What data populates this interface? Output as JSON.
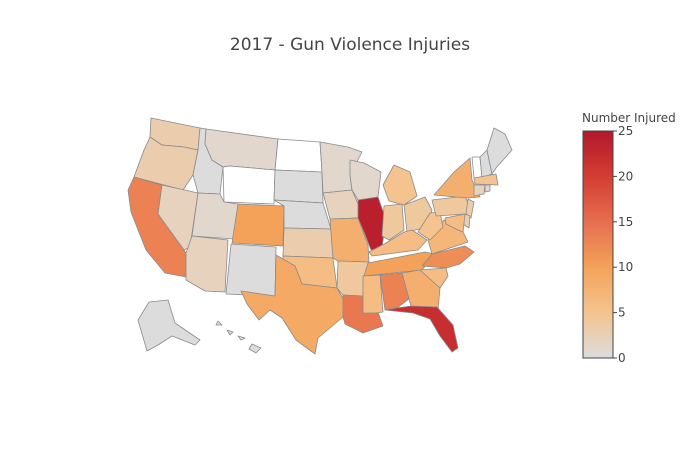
{
  "chart_data": {
    "type": "choropleth",
    "title": "2017 - Gun Violence Injuries",
    "colorbar": {
      "title": "Number Injured",
      "range": [
        0,
        25
      ],
      "ticks": [
        0,
        5,
        10,
        15,
        20,
        25
      ],
      "colorscale": [
        [
          0,
          "#dcdcdc"
        ],
        [
          0.2,
          "#f5c38f"
        ],
        [
          0.4,
          "#f4a25a"
        ],
        [
          0.6,
          "#e66d4f"
        ],
        [
          0.8,
          "#d43d33"
        ],
        [
          1,
          "#b2182b"
        ]
      ]
    },
    "missing_color": "#ffffff",
    "states": [
      {
        "state": "WA",
        "value": 3
      },
      {
        "state": "OR",
        "value": 3
      },
      {
        "state": "CA",
        "value": 13
      },
      {
        "state": "NV",
        "value": 2
      },
      {
        "state": "ID",
        "value": 0
      },
      {
        "state": "MT",
        "value": 1
      },
      {
        "state": "WY",
        "value": null
      },
      {
        "state": "UT",
        "value": 1
      },
      {
        "state": "AZ",
        "value": 2
      },
      {
        "state": "CO",
        "value": 10
      },
      {
        "state": "NM",
        "value": 0
      },
      {
        "state": "ND",
        "value": null
      },
      {
        "state": "SD",
        "value": 0
      },
      {
        "state": "NE",
        "value": 0
      },
      {
        "state": "KS",
        "value": 3
      },
      {
        "state": "OK",
        "value": 6
      },
      {
        "state": "TX",
        "value": 9
      },
      {
        "state": "MN",
        "value": 1
      },
      {
        "state": "IA",
        "value": 2
      },
      {
        "state": "MO",
        "value": 8
      },
      {
        "state": "AR",
        "value": 4
      },
      {
        "state": "LA",
        "value": 14
      },
      {
        "state": "WI",
        "value": 1
      },
      {
        "state": "IL",
        "value": 24
      },
      {
        "state": "MI",
        "value": 5
      },
      {
        "state": "IN",
        "value": 4
      },
      {
        "state": "OH",
        "value": 4
      },
      {
        "state": "KY",
        "value": 6
      },
      {
        "state": "TN",
        "value": 10
      },
      {
        "state": "MS",
        "value": 6
      },
      {
        "state": "AL",
        "value": 13
      },
      {
        "state": "GA",
        "value": 8
      },
      {
        "state": "FL",
        "value": 22
      },
      {
        "state": "SC",
        "value": 6
      },
      {
        "state": "NC",
        "value": 12
      },
      {
        "state": "VA",
        "value": 7
      },
      {
        "state": "WV",
        "value": 5
      },
      {
        "state": "PA",
        "value": 4
      },
      {
        "state": "NY",
        "value": 8
      },
      {
        "state": "VT",
        "value": null
      },
      {
        "state": "NH",
        "value": 0
      },
      {
        "state": "ME",
        "value": 0
      },
      {
        "state": "MA",
        "value": 5
      },
      {
        "state": "CT",
        "value": 2
      },
      {
        "state": "RI",
        "value": 1
      },
      {
        "state": "NJ",
        "value": 3
      },
      {
        "state": "DE",
        "value": 3
      },
      {
        "state": "MD",
        "value": 6
      },
      {
        "state": "AK",
        "value": 0
      },
      {
        "state": "HI",
        "value": 0
      }
    ]
  }
}
